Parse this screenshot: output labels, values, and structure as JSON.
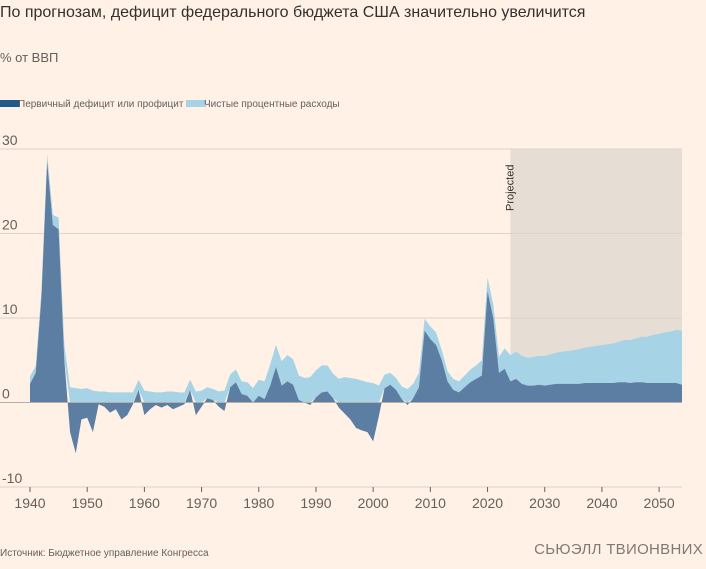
{
  "chart_data": {
    "type": "area",
    "title": "По прогнозам, дефицит федерального бюджета США значительно увеличится",
    "subtitle": "% от ВВП",
    "xlabel": "",
    "ylabel": "% от ВВП",
    "xlim": [
      1940,
      2054
    ],
    "ylim": [
      -10,
      30
    ],
    "x_ticks": [
      1940,
      1950,
      1960,
      1970,
      1980,
      1990,
      2000,
      2010,
      2020,
      2030,
      2040,
      2050
    ],
    "y_ticks": [
      30,
      20,
      10,
      0,
      -10
    ],
    "projected_from": 2024,
    "projected_label": "Projected",
    "x": [
      1940,
      1941,
      1942,
      1943,
      1944,
      1945,
      1946,
      1947,
      1948,
      1949,
      1950,
      1951,
      1952,
      1953,
      1954,
      1955,
      1956,
      1957,
      1958,
      1959,
      1960,
      1961,
      1962,
      1963,
      1964,
      1965,
      1966,
      1967,
      1968,
      1969,
      1970,
      1971,
      1972,
      1973,
      1974,
      1975,
      1976,
      1977,
      1978,
      1979,
      1980,
      1981,
      1982,
      1983,
      1984,
      1985,
      1986,
      1987,
      1988,
      1989,
      1990,
      1991,
      1992,
      1993,
      1994,
      1995,
      1996,
      1997,
      1998,
      1999,
      2000,
      2001,
      2002,
      2003,
      2004,
      2005,
      2006,
      2007,
      2008,
      2009,
      2010,
      2011,
      2012,
      2013,
      2014,
      2015,
      2016,
      2017,
      2018,
      2019,
      2020,
      2021,
      2022,
      2023,
      2024,
      2025,
      2026,
      2027,
      2028,
      2029,
      2030,
      2031,
      2032,
      2033,
      2034,
      2035,
      2036,
      2037,
      2038,
      2039,
      2040,
      2041,
      2042,
      2043,
      2044,
      2045,
      2046,
      2047,
      2048,
      2049,
      2050,
      2051,
      2052,
      2053,
      2054
    ],
    "series": [
      {
        "name": "Первичный дефицит или профицит",
        "color": "#5d7ea3",
        "values": [
          2.2,
          3.5,
          12.5,
          28.5,
          21,
          20.5,
          5,
          -3.5,
          -6,
          -2,
          -1.8,
          -3.5,
          -0.2,
          -0.5,
          -1.2,
          -0.8,
          -2,
          -1.5,
          -0.2,
          1.5,
          -1.5,
          -0.8,
          -0.3,
          -0.6,
          -0.3,
          -0.8,
          -0.5,
          -0.2,
          1.5,
          -1.5,
          -0.5,
          0.5,
          0.3,
          -0.5,
          -1,
          1.8,
          2.4,
          1,
          0.8,
          0,
          0.8,
          0.4,
          2,
          4.2,
          2,
          2.5,
          2.1,
          0.3,
          0,
          -0.3,
          0.6,
          1.2,
          1.3,
          0.5,
          -0.6,
          -1.3,
          -2,
          -3,
          -3.3,
          -3.5,
          -4.6,
          -1.6,
          1.7,
          2.1,
          1.5,
          0.4,
          -0.3,
          0.5,
          1.8,
          8.5,
          7.5,
          6.8,
          5,
          2.5,
          1.5,
          1.2,
          1.8,
          2.4,
          2.8,
          3.2,
          13.2,
          10,
          3.5,
          4,
          2.5,
          2.8,
          2.2,
          2,
          2,
          2.1,
          2,
          2.1,
          2.2,
          2.2,
          2.2,
          2.2,
          2.2,
          2.3,
          2.3,
          2.3,
          2.3,
          2.3,
          2.3,
          2.4,
          2.4,
          2.3,
          2.4,
          2.4,
          2.3,
          2.3,
          2.3,
          2.3,
          2.3,
          2.3,
          2.1
        ]
      },
      {
        "name": "Чистые процентные расходы",
        "color": "#a6d3e6",
        "values": [
          0.9,
          0.8,
          0.8,
          0.9,
          1.2,
          1.4,
          1.9,
          1.8,
          1.7,
          1.6,
          1.7,
          1.4,
          1.3,
          1.3,
          1.2,
          1.2,
          1.2,
          1.2,
          1.2,
          1.2,
          1.4,
          1.3,
          1.2,
          1.2,
          1.3,
          1.3,
          1.2,
          1.2,
          1.2,
          1.3,
          1.4,
          1.3,
          1.3,
          1.3,
          1.4,
          1.5,
          1.5,
          1.5,
          1.6,
          1.7,
          1.9,
          2.1,
          2.5,
          2.6,
          2.9,
          3.1,
          3.0,
          2.9,
          2.9,
          3.0,
          3.2,
          3.2,
          3.1,
          2.9,
          2.8,
          3.0,
          2.9,
          2.8,
          2.6,
          2.4,
          2.3,
          2.0,
          1.6,
          1.4,
          1.4,
          1.5,
          1.6,
          1.7,
          1.7,
          1.4,
          1.5,
          1.5,
          1.2,
          1.2,
          1.3,
          1.3,
          1.4,
          1.5,
          1.6,
          1.8,
          1.6,
          1.6,
          1.9,
          2.4,
          3.1,
          3.2,
          3.3,
          3.3,
          3.4,
          3.4,
          3.5,
          3.6,
          3.7,
          3.8,
          3.9,
          4.0,
          4.1,
          4.2,
          4.3,
          4.4,
          4.5,
          4.6,
          4.7,
          4.8,
          5.0,
          5.1,
          5.2,
          5.4,
          5.5,
          5.7,
          5.8,
          6.0,
          6.1,
          6.3,
          6.4
        ]
      }
    ]
  },
  "legend": {
    "items": [
      {
        "label": "Первичный дефицит или профицит",
        "color": "#1f5a8c"
      },
      {
        "label": "Чистые процентные расходы",
        "color": "#a6d3e6"
      }
    ]
  },
  "footer": {
    "source": "Источник: Бюджетное управление Конгресса",
    "credit": "СЬЮЭЛЛ ТВИОНВНИХ"
  }
}
